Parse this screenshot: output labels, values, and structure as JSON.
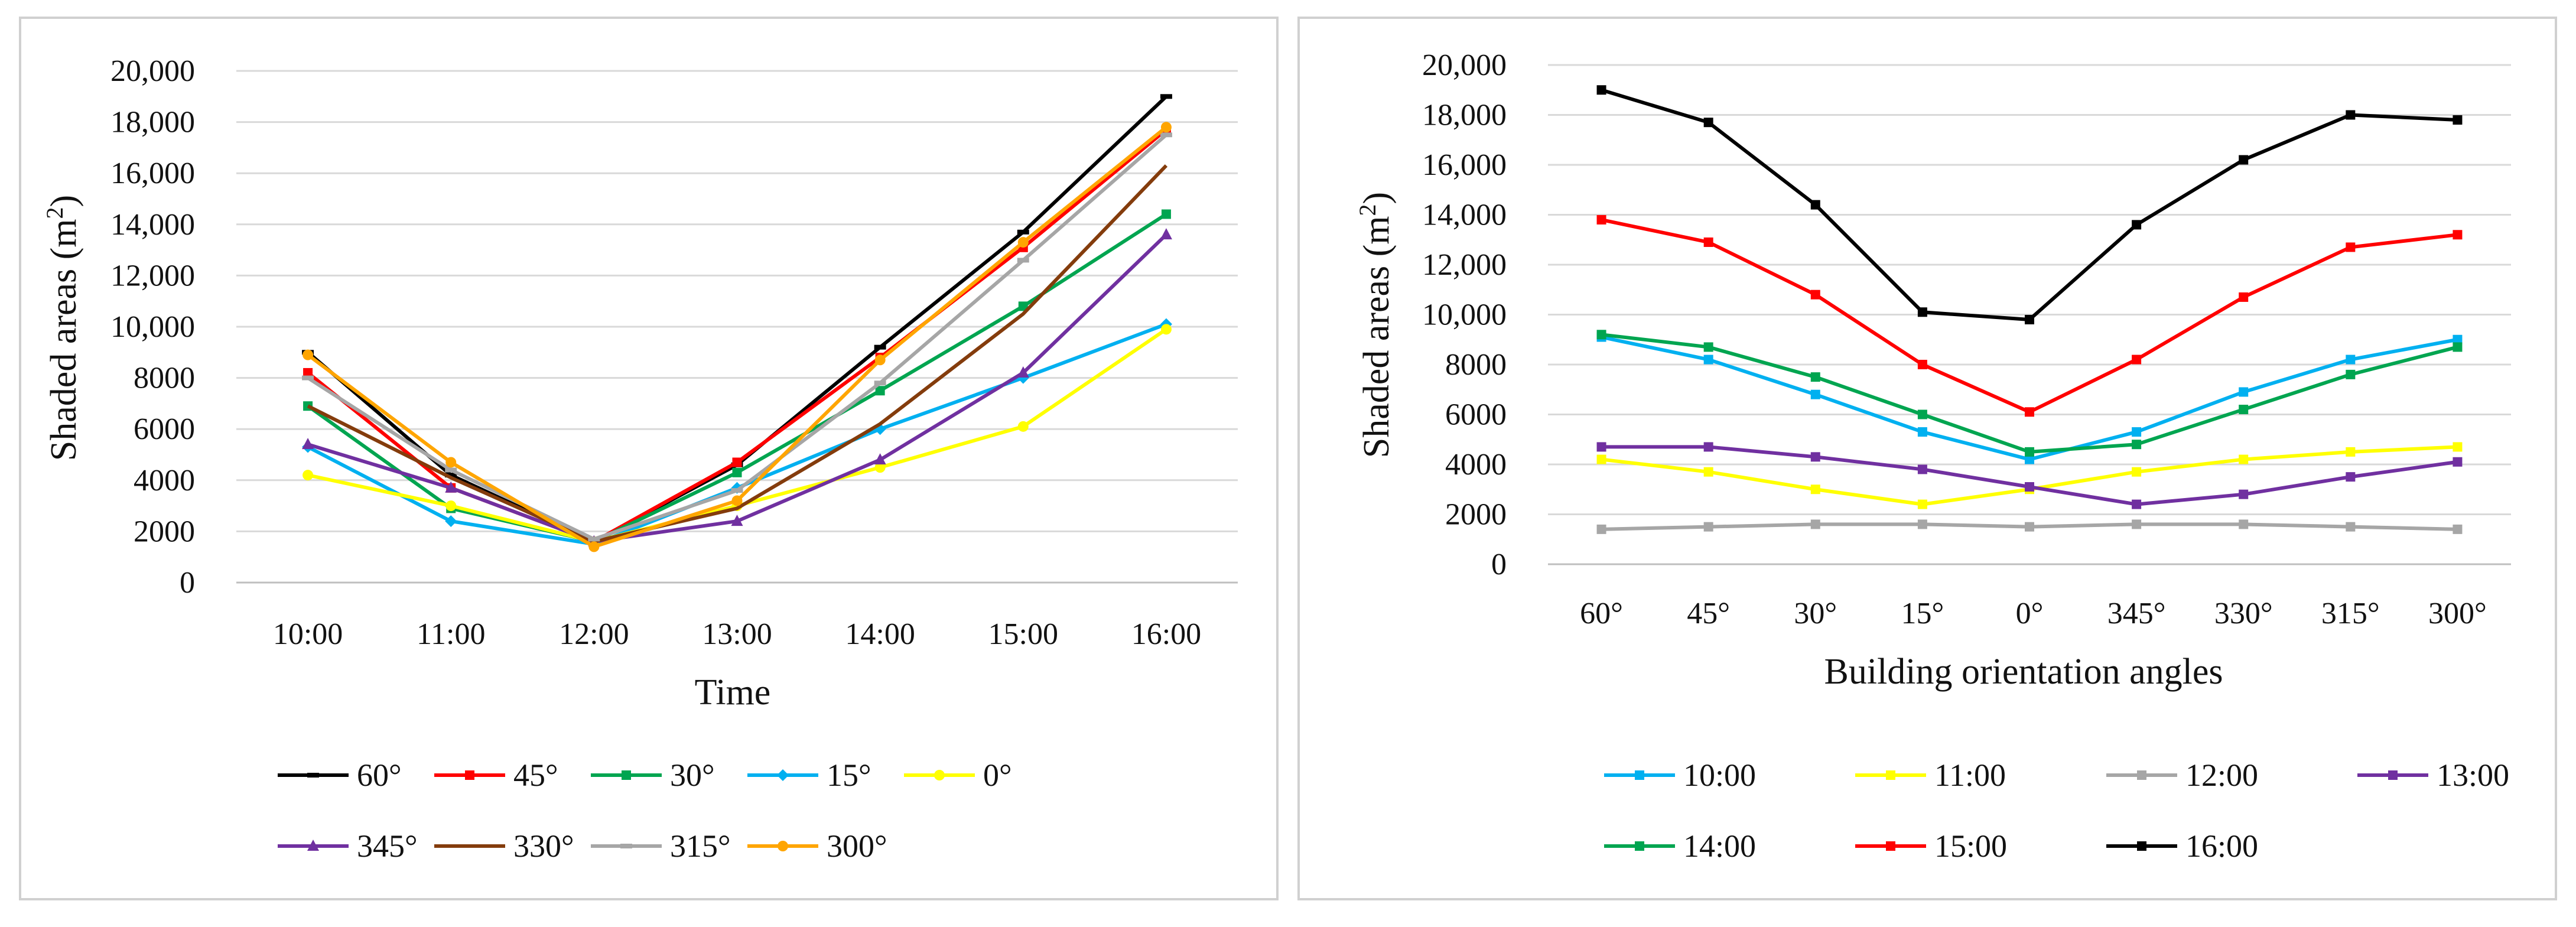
{
  "chart_data": [
    {
      "type": "line",
      "title": "",
      "xlabel": "Time",
      "ylabel_main": "Shaded areas",
      "ylabel_unit_open": "(m",
      "ylabel_unit_exp": "2",
      "ylabel_unit_close": ")",
      "categories": [
        "10:00",
        "11:00",
        "12:00",
        "13:00",
        "14:00",
        "15:00",
        "16:00"
      ],
      "ylim": [
        0,
        20000
      ],
      "yticks": [
        "0",
        "2000",
        "4000",
        "6000",
        "8000",
        "10,000",
        "12,000",
        "14,000",
        "16,000",
        "18,000",
        "20,000"
      ],
      "grid": true,
      "legend_position": "bottom",
      "series": [
        {
          "name": "60°",
          "color": "#000000",
          "marker": "dash",
          "values": [
            9000,
            4200,
            1600,
            4600,
            9200,
            13700,
            19000
          ]
        },
        {
          "name": "45°",
          "color": "#ff0000",
          "marker": "square",
          "values": [
            8200,
            3700,
            1600,
            4700,
            8800,
            13100,
            17700
          ]
        },
        {
          "name": "30°",
          "color": "#00a550",
          "marker": "square",
          "values": [
            6900,
            2900,
            1600,
            4300,
            7500,
            10800,
            14400
          ]
        },
        {
          "name": "15°",
          "color": "#00b0f0",
          "marker": "diamond",
          "values": [
            5300,
            2400,
            1500,
            3700,
            6000,
            8000,
            10100
          ]
        },
        {
          "name": "0°",
          "color": "#ffff00",
          "marker": "circle",
          "values": [
            4200,
            3000,
            1600,
            3000,
            4500,
            6100,
            9900
          ]
        },
        {
          "name": "345°",
          "color": "#7030a0",
          "marker": "triangle",
          "values": [
            5400,
            3700,
            1600,
            2400,
            4800,
            8200,
            13600
          ]
        },
        {
          "name": "330°",
          "color": "#843c0c",
          "marker": "none",
          "values": [
            6900,
            4100,
            1600,
            2900,
            6200,
            10500,
            16300
          ]
        },
        {
          "name": "315°",
          "color": "#a6a6a6",
          "marker": "dash",
          "values": [
            8000,
            4400,
            1700,
            3600,
            7800,
            12600,
            17500
          ]
        },
        {
          "name": "300°",
          "color": "#ffa500",
          "marker": "circle",
          "values": [
            8900,
            4700,
            1400,
            3200,
            8700,
            13300,
            17800
          ]
        }
      ]
    },
    {
      "type": "line",
      "title": "",
      "xlabel": "Building orientation angles",
      "ylabel_main": "Shaded areas",
      "ylabel_unit_open": "(m",
      "ylabel_unit_exp": "2",
      "ylabel_unit_close": ")",
      "categories": [
        "60°",
        "45°",
        "30°",
        "15°",
        "0°",
        "345°",
        "330°",
        "315°",
        "300°"
      ],
      "ylim": [
        0,
        20000
      ],
      "yticks": [
        "0",
        "2000",
        "4000",
        "6000",
        "8000",
        "10,000",
        "12,000",
        "14,000",
        "16,000",
        "18,000",
        "20,000"
      ],
      "grid": true,
      "legend_position": "bottom",
      "series": [
        {
          "name": "10:00",
          "color": "#00b0f0",
          "marker": "square",
          "values": [
            9100,
            8200,
            6800,
            5300,
            4200,
            5300,
            6900,
            8200,
            9000
          ]
        },
        {
          "name": "11:00",
          "color": "#ffff00",
          "marker": "square",
          "values": [
            4200,
            3700,
            3000,
            2400,
            3000,
            3700,
            4200,
            4500,
            4700
          ]
        },
        {
          "name": "12:00",
          "color": "#a6a6a6",
          "marker": "square",
          "values": [
            1400,
            1500,
            1600,
            1600,
            1500,
            1600,
            1600,
            1500,
            1400
          ]
        },
        {
          "name": "13:00",
          "color": "#7030a0",
          "marker": "square",
          "values": [
            4700,
            4700,
            4300,
            3800,
            3100,
            2400,
            2800,
            3500,
            4100
          ]
        },
        {
          "name": "14:00",
          "color": "#00a550",
          "marker": "square",
          "values": [
            9200,
            8700,
            7500,
            6000,
            4500,
            4800,
            6200,
            7600,
            8700
          ]
        },
        {
          "name": "15:00",
          "color": "#ff0000",
          "marker": "square",
          "values": [
            13800,
            12900,
            10800,
            8000,
            6100,
            8200,
            10700,
            12700,
            13200
          ]
        },
        {
          "name": "16:00",
          "color": "#000000",
          "marker": "square",
          "values": [
            19000,
            17700,
            14400,
            10100,
            9800,
            13600,
            16200,
            18000,
            17800
          ]
        }
      ]
    }
  ]
}
